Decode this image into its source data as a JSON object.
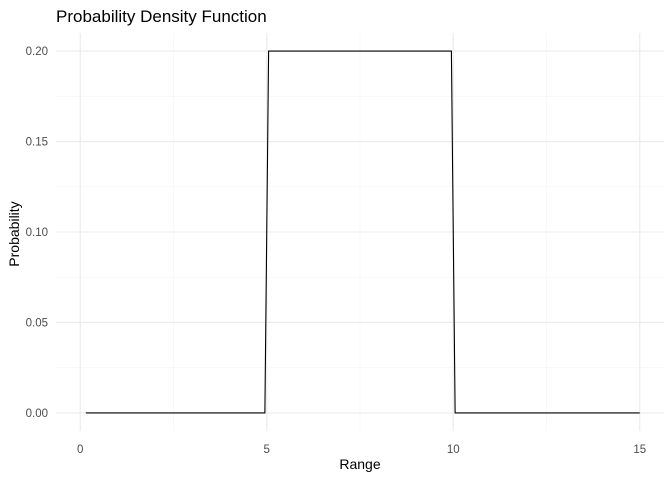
{
  "chart_data": {
    "type": "line",
    "title": "Probability Density Function",
    "xlabel": "Range",
    "ylabel": "Probability",
    "xlim": [
      -0.65,
      15.65
    ],
    "ylim": [
      -0.01,
      0.21
    ],
    "x_ticks": [
      0,
      5,
      10,
      15
    ],
    "x_tick_labels": [
      "0",
      "5",
      "10",
      "15"
    ],
    "y_ticks": [
      0,
      0.05,
      0.1,
      0.15,
      0.2
    ],
    "y_tick_labels": [
      "0.00",
      "0.05",
      "0.10",
      "0.15",
      "0.20"
    ],
    "x_minor_ticks": [
      2.5,
      7.5,
      12.5
    ],
    "y_minor_ticks": [
      0.025,
      0.075,
      0.125,
      0.175
    ],
    "grid": true,
    "series": [
      {
        "color": "#000000",
        "x": [
          0.15,
          4.95,
          5.05,
          9.95,
          10.05,
          15
        ],
        "y": [
          0,
          0,
          0.2,
          0.2,
          0,
          0
        ]
      }
    ]
  },
  "colors": {
    "background": "#ffffff",
    "grid_major": "#ebebeb",
    "grid_minor": "#f3f3f3",
    "tick_text": "#4d4d4d",
    "title_text": "#000000",
    "line": "#000000"
  }
}
